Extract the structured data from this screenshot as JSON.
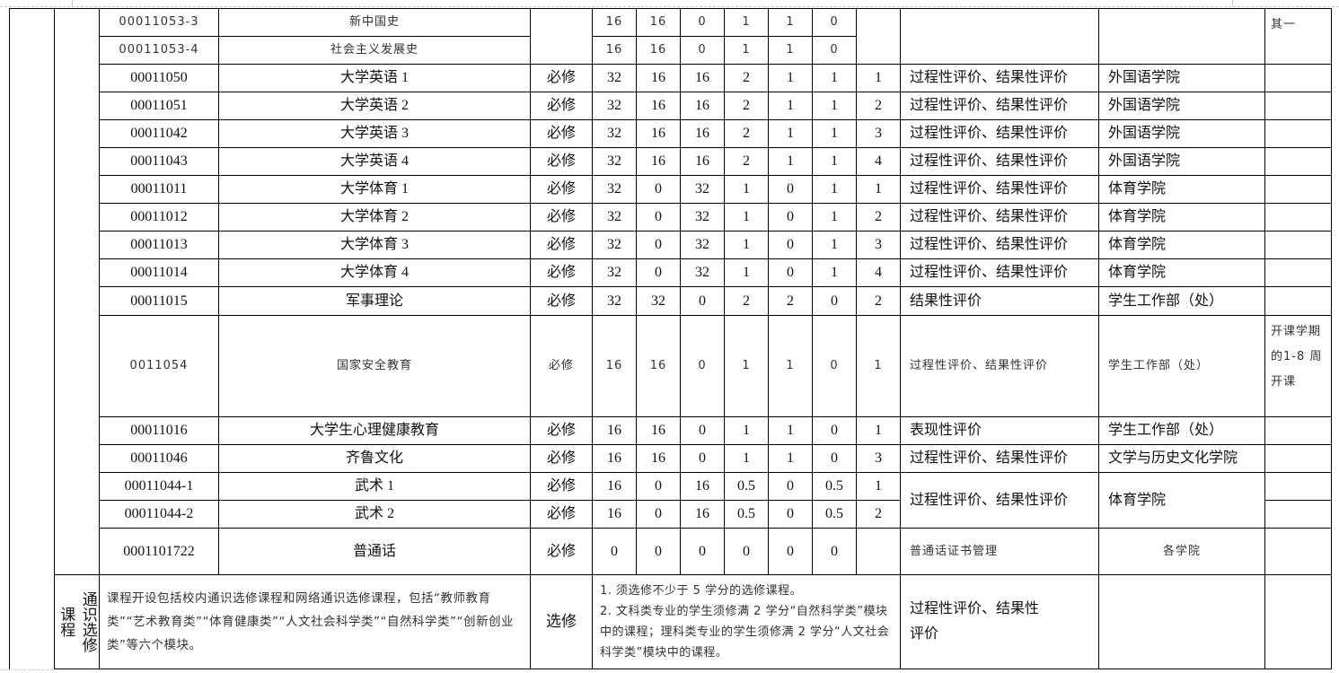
{
  "rows": [
    {
      "code": "00011053-3",
      "name": "新中国史",
      "type": "",
      "hours": [
        "16",
        "16",
        "0",
        "1",
        "1",
        "0"
      ],
      "semester": "",
      "evaluation": "",
      "department": "",
      "note": "其一",
      "small": true
    },
    {
      "code": "00011053-4",
      "name": "社会主义发展史",
      "type": "",
      "hours": [
        "16",
        "16",
        "0",
        "1",
        "1",
        "0"
      ],
      "semester": "",
      "evaluation": "",
      "department": "",
      "note": "",
      "small": true
    },
    {
      "code": "00011050",
      "name": "大学英语 1",
      "type": "必修",
      "hours": [
        "32",
        "16",
        "16",
        "2",
        "1",
        "1"
      ],
      "semester": "1",
      "evaluation": "过程性评价、结果性评价",
      "department": "外国语学院",
      "note": ""
    },
    {
      "code": "00011051",
      "name": "大学英语 2",
      "type": "必修",
      "hours": [
        "32",
        "16",
        "16",
        "2",
        "1",
        "1"
      ],
      "semester": "2",
      "evaluation": "过程性评价、结果性评价",
      "department": "外国语学院",
      "note": ""
    },
    {
      "code": "00011042",
      "name": "大学英语 3",
      "type": "必修",
      "hours": [
        "32",
        "16",
        "16",
        "2",
        "1",
        "1"
      ],
      "semester": "3",
      "evaluation": "过程性评价、结果性评价",
      "department": "外国语学院",
      "note": ""
    },
    {
      "code": "00011043",
      "name": "大学英语 4",
      "type": "必修",
      "hours": [
        "32",
        "16",
        "16",
        "2",
        "1",
        "1"
      ],
      "semester": "4",
      "evaluation": "过程性评价、结果性评价",
      "department": "外国语学院",
      "note": ""
    },
    {
      "code": "00011011",
      "name": "大学体育 1",
      "type": "必修",
      "hours": [
        "32",
        "0",
        "32",
        "1",
        "0",
        "1"
      ],
      "semester": "1",
      "evaluation": "过程性评价、结果性评价",
      "department": "体育学院",
      "note": ""
    },
    {
      "code": "00011012",
      "name": "大学体育 2",
      "type": "必修",
      "hours": [
        "32",
        "0",
        "32",
        "1",
        "0",
        "1"
      ],
      "semester": "2",
      "evaluation": "过程性评价、结果性评价",
      "department": "体育学院",
      "note": ""
    },
    {
      "code": "00011013",
      "name": "大学体育 3",
      "type": "必修",
      "hours": [
        "32",
        "0",
        "32",
        "1",
        "0",
        "1"
      ],
      "semester": "3",
      "evaluation": "过程性评价、结果性评价",
      "department": "体育学院",
      "note": ""
    },
    {
      "code": "00011014",
      "name": "大学体育 4",
      "type": "必修",
      "hours": [
        "32",
        "0",
        "32",
        "1",
        "0",
        "1"
      ],
      "semester": "4",
      "evaluation": "过程性评价、结果性评价",
      "department": "体育学院",
      "note": ""
    },
    {
      "code": "00011015",
      "name": "军事理论",
      "type": "必修",
      "hours": [
        "32",
        "32",
        "0",
        "2",
        "2",
        "0"
      ],
      "semester": "2",
      "evaluation": "结果性评价",
      "department": "学生工作部（处）",
      "note": ""
    },
    {
      "code": "0011054",
      "name": "国家安全教育",
      "type": "必修",
      "hours": [
        "16",
        "16",
        "0",
        "1",
        "1",
        "0"
      ],
      "semester": "1",
      "evaluation": "过程性评价、结果性评价",
      "department": "学生工作部（处）",
      "note": "开课学期的1-8 周开课",
      "small": true
    },
    {
      "code": "00011016",
      "name": "大学生心理健康教育",
      "type": "必修",
      "hours": [
        "16",
        "16",
        "0",
        "1",
        "1",
        "0"
      ],
      "semester": "1",
      "evaluation": "表现性评价",
      "department": "学生工作部（处）",
      "note": ""
    },
    {
      "code": "00011046",
      "name": "齐鲁文化",
      "type": "必修",
      "hours": [
        "16",
        "16",
        "0",
        "1",
        "1",
        "0"
      ],
      "semester": "3",
      "evaluation": "过程性评价、结果性评价",
      "department": "文学与历史文化学院",
      "note": ""
    },
    {
      "code": "00011044-1",
      "name": "武术 1",
      "type": "必修",
      "hours": [
        "16",
        "0",
        "16",
        "0.5",
        "0",
        "0.5"
      ],
      "semester": "1",
      "evaluation": "过程性评价、结果性评价",
      "department": "体育学院",
      "note": ""
    },
    {
      "code": "00011044-2",
      "name": "武术 2",
      "type": "必修",
      "hours": [
        "16",
        "0",
        "16",
        "0.5",
        "0",
        "0.5"
      ],
      "semester": "2",
      "evaluation": "",
      "department": "",
      "note": ""
    },
    {
      "code": "0001101722",
      "name": "普通话",
      "type": "必修",
      "hours": [
        "0",
        "0",
        "0",
        "0",
        "0",
        "0"
      ],
      "semester": "",
      "evaluation": "普通话证书管理",
      "department": "各学院",
      "note": "",
      "small_eval": true
    }
  ],
  "elective": {
    "category_outer": "课程",
    "category_inner": "通识选修",
    "description": "课程开设包括校内通识选修课程和网络通识选修课程，包括“教师教育类”“艺术教育类”“体育健康类”“人文社会科学类”“自然科学类”“创新创业类”等六个模块。",
    "type": "选修",
    "rules": [
      "1. 须选修不少于 5 学分的选修课程。",
      "2. 文科类专业的学生须修满 2 学分“自然科学类”模块中的课程；理科类专业的学生须修满 2 学分“人文社会科学类”模块中的课程。"
    ],
    "evaluation": "过程性评价、结果性评价"
  }
}
